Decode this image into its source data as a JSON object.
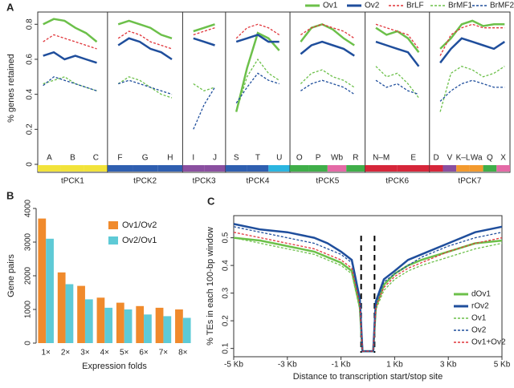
{
  "chart_data": [
    {
      "type": "line",
      "label": "A",
      "y_label": "% genes retained",
      "ylim": [
        0,
        0.87
      ],
      "yticks": [
        0,
        0.2,
        0.4,
        0.6,
        0.8
      ],
      "chromosomes": [
        {
          "name": "tPCK1",
          "blocks": [
            {
              "label": "A",
              "color": "#f2e33a"
            },
            {
              "label": "B",
              "color": "#f2e33a"
            },
            {
              "label": "C",
              "color": "#f2e33a"
            }
          ]
        },
        {
          "name": "tPCK2",
          "blocks": [
            {
              "label": "F",
              "color": "#2f5fb0"
            },
            {
              "label": "G",
              "color": "#2f5fb0"
            },
            {
              "label": "H",
              "color": "#2f5fb0"
            }
          ]
        },
        {
          "name": "tPCK3",
          "blocks": [
            {
              "label": "I",
              "color": "#8a4fa0"
            },
            {
              "label": "J",
              "color": "#8a4fa0"
            }
          ]
        },
        {
          "name": "tPCK4",
          "blocks": [
            {
              "label": "S",
              "color": "#2f5fb0"
            },
            {
              "label": "T",
              "color": "#2f5fb0"
            },
            {
              "label": "U",
              "color": "#2bb5e0"
            }
          ]
        },
        {
          "name": "tPCK5",
          "blocks": [
            {
              "label": "O",
              "color": "#3fae49"
            },
            {
              "label": "P",
              "color": "#3fae49"
            },
            {
              "label": "Wb",
              "color": "#e46aa6"
            },
            {
              "label": "R",
              "color": "#3fae49"
            }
          ]
        },
        {
          "name": "tPCK6",
          "blocks": [
            {
              "label": "N–M",
              "color": "#d6263a"
            },
            {
              "label": "E",
              "color": "#d6263a"
            }
          ]
        },
        {
          "name": "tPCK7",
          "blocks": [
            {
              "label": "D",
              "color": "#d6263a"
            },
            {
              "label": "V",
              "color": "#8a4fa0"
            },
            {
              "label": "K–L",
              "color": "#f39a2e"
            },
            {
              "label": "Wa",
              "color": "#f39a2e"
            },
            {
              "label": "Q",
              "color": "#3fae49"
            },
            {
              "label": "X",
              "color": "#e46aa6"
            }
          ]
        }
      ],
      "series": [
        {
          "name": "Ov1",
          "color": "#6cc04a",
          "style": "solid",
          "values": [
            0.8,
            0.83,
            0.82,
            0.78,
            0.75,
            0.7,
            null,
            0.8,
            0.82,
            0.8,
            0.78,
            0.74,
            0.72,
            null,
            0.76,
            0.78,
            0.8,
            null,
            0.3,
            0.55,
            0.75,
            0.72,
            0.65,
            null,
            0.7,
            0.78,
            0.8,
            0.77,
            0.72,
            0.68,
            null,
            0.78,
            0.74,
            0.76,
            0.72,
            0.64,
            null,
            0.66,
            0.72,
            0.8,
            0.82,
            0.79,
            0.8,
            0.8
          ]
        },
        {
          "name": "Ov2",
          "color": "#1f4e9c",
          "style": "solid",
          "values": [
            0.62,
            0.64,
            0.6,
            0.62,
            0.6,
            0.58,
            null,
            0.68,
            0.72,
            0.7,
            0.66,
            0.64,
            0.6,
            null,
            0.72,
            0.7,
            0.68,
            null,
            0.7,
            0.72,
            0.74,
            0.7,
            0.7,
            null,
            0.63,
            0.68,
            0.7,
            0.68,
            0.66,
            0.62,
            null,
            0.7,
            0.68,
            0.66,
            0.64,
            0.56,
            null,
            0.58,
            0.66,
            0.72,
            0.7,
            0.68,
            0.66,
            0.7
          ]
        },
        {
          "name": "BrLF",
          "color": "#e0353a",
          "style": "dotted",
          "values": [
            0.7,
            0.74,
            0.72,
            0.7,
            0.68,
            0.66,
            null,
            0.72,
            0.76,
            0.74,
            0.7,
            0.68,
            0.66,
            null,
            0.74,
            0.76,
            0.78,
            null,
            0.72,
            0.78,
            0.8,
            0.78,
            0.74,
            null,
            0.74,
            0.78,
            0.8,
            0.78,
            0.76,
            0.72,
            null,
            0.8,
            0.78,
            0.76,
            0.74,
            0.66,
            null,
            0.62,
            0.74,
            0.78,
            0.8,
            0.78,
            0.78,
            0.78
          ]
        },
        {
          "name": "BrMF1",
          "color": "#6cc04a",
          "style": "dotted",
          "values": [
            0.46,
            0.48,
            0.5,
            0.46,
            0.44,
            0.42,
            null,
            0.46,
            0.5,
            0.48,
            0.44,
            0.4,
            0.38,
            null,
            0.46,
            0.42,
            0.44,
            null,
            0.3,
            0.5,
            0.6,
            0.52,
            0.48,
            null,
            0.46,
            0.52,
            0.54,
            0.5,
            0.48,
            0.44,
            null,
            0.56,
            0.5,
            0.52,
            0.46,
            0.38,
            null,
            0.3,
            0.52,
            0.56,
            0.54,
            0.5,
            0.52,
            0.56
          ]
        },
        {
          "name": "BrMF2",
          "color": "#1f4e9c",
          "style": "dotted",
          "values": [
            0.45,
            0.5,
            0.48,
            0.46,
            0.44,
            0.42,
            null,
            0.46,
            0.48,
            0.46,
            0.44,
            0.42,
            0.4,
            null,
            0.2,
            0.34,
            0.44,
            null,
            0.35,
            0.44,
            0.52,
            0.48,
            0.46,
            null,
            0.42,
            0.46,
            0.48,
            0.46,
            0.44,
            0.4,
            null,
            0.48,
            0.44,
            0.46,
            0.42,
            0.4,
            null,
            0.36,
            0.42,
            0.46,
            0.48,
            0.46,
            0.44,
            0.44
          ]
        }
      ]
    },
    {
      "type": "bar",
      "label": "B",
      "x_label": "Expression folds",
      "y_label": "Gene pairs",
      "categories": [
        "1×",
        "2×",
        "3×",
        "4×",
        "5×",
        "6×",
        "7×",
        "8×"
      ],
      "ylim": [
        0,
        4000
      ],
      "yticks": [
        0,
        1000,
        2000,
        3000,
        4000
      ],
      "series": [
        {
          "name": "Ov1/Ov2",
          "color": "#f08a2c",
          "values": [
            3700,
            2100,
            1700,
            1350,
            1200,
            1100,
            1050,
            1000
          ]
        },
        {
          "name": "Ov2/Ov1",
          "color": "#5ecad6",
          "values": [
            3100,
            1750,
            1300,
            1050,
            1000,
            850,
            800,
            750
          ]
        }
      ]
    },
    {
      "type": "line",
      "label": "C",
      "x_label": "Distance to transcription start/stop site",
      "y_label": "% TEs in each 100-bp window",
      "xlim": [
        -5000,
        5000
      ],
      "xticks": [
        {
          "value": -5000,
          "label": "-5 Kb"
        },
        {
          "value": -3000,
          "label": "-3 Kb"
        },
        {
          "value": -1000,
          "label": "-1 Kb"
        },
        {
          "value": 1000,
          "label": "1 Kb"
        },
        {
          "value": 3000,
          "label": "3 Kb"
        },
        {
          "value": 5000,
          "label": "5 Kb"
        }
      ],
      "ylim": [
        0.07,
        0.58
      ],
      "yticks": [
        0.1,
        0.2,
        0.3,
        0.4,
        0.5
      ],
      "vlines": [
        -250,
        250
      ],
      "x": [
        -5000,
        -4000,
        -3000,
        -2000,
        -1500,
        -1000,
        -600,
        -300,
        -200,
        200,
        300,
        600,
        1000,
        1500,
        2000,
        3000,
        4000,
        5000
      ],
      "series": [
        {
          "name": "dOv1",
          "color": "#6cc04a",
          "style": "solid",
          "values": [
            0.5,
            0.49,
            0.47,
            0.45,
            0.43,
            0.41,
            0.38,
            0.25,
            0.09,
            0.09,
            0.25,
            0.33,
            0.37,
            0.4,
            0.42,
            0.45,
            0.48,
            0.49
          ]
        },
        {
          "name": "rOv2",
          "color": "#1f4e9c",
          "style": "solid",
          "values": [
            0.55,
            0.53,
            0.52,
            0.5,
            0.48,
            0.45,
            0.42,
            0.28,
            0.09,
            0.09,
            0.27,
            0.35,
            0.38,
            0.42,
            0.44,
            0.48,
            0.52,
            0.54
          ]
        },
        {
          "name": "Ov1",
          "color": "#6cc04a",
          "style": "dotted",
          "values": [
            0.5,
            0.48,
            0.46,
            0.44,
            0.42,
            0.4,
            0.37,
            0.24,
            0.09,
            0.09,
            0.24,
            0.31,
            0.35,
            0.38,
            0.4,
            0.43,
            0.46,
            0.48
          ]
        },
        {
          "name": "Ov2",
          "color": "#1f4e9c",
          "style": "dotted",
          "values": [
            0.54,
            0.52,
            0.5,
            0.48,
            0.46,
            0.44,
            0.41,
            0.27,
            0.09,
            0.09,
            0.26,
            0.34,
            0.37,
            0.4,
            0.43,
            0.47,
            0.5,
            0.52
          ]
        },
        {
          "name": "Ov1+Ov2",
          "color": "#e0353a",
          "style": "dotted",
          "values": [
            0.52,
            0.5,
            0.48,
            0.46,
            0.44,
            0.42,
            0.39,
            0.26,
            0.09,
            0.09,
            0.25,
            0.32,
            0.36,
            0.39,
            0.41,
            0.45,
            0.48,
            0.5
          ]
        }
      ]
    }
  ]
}
